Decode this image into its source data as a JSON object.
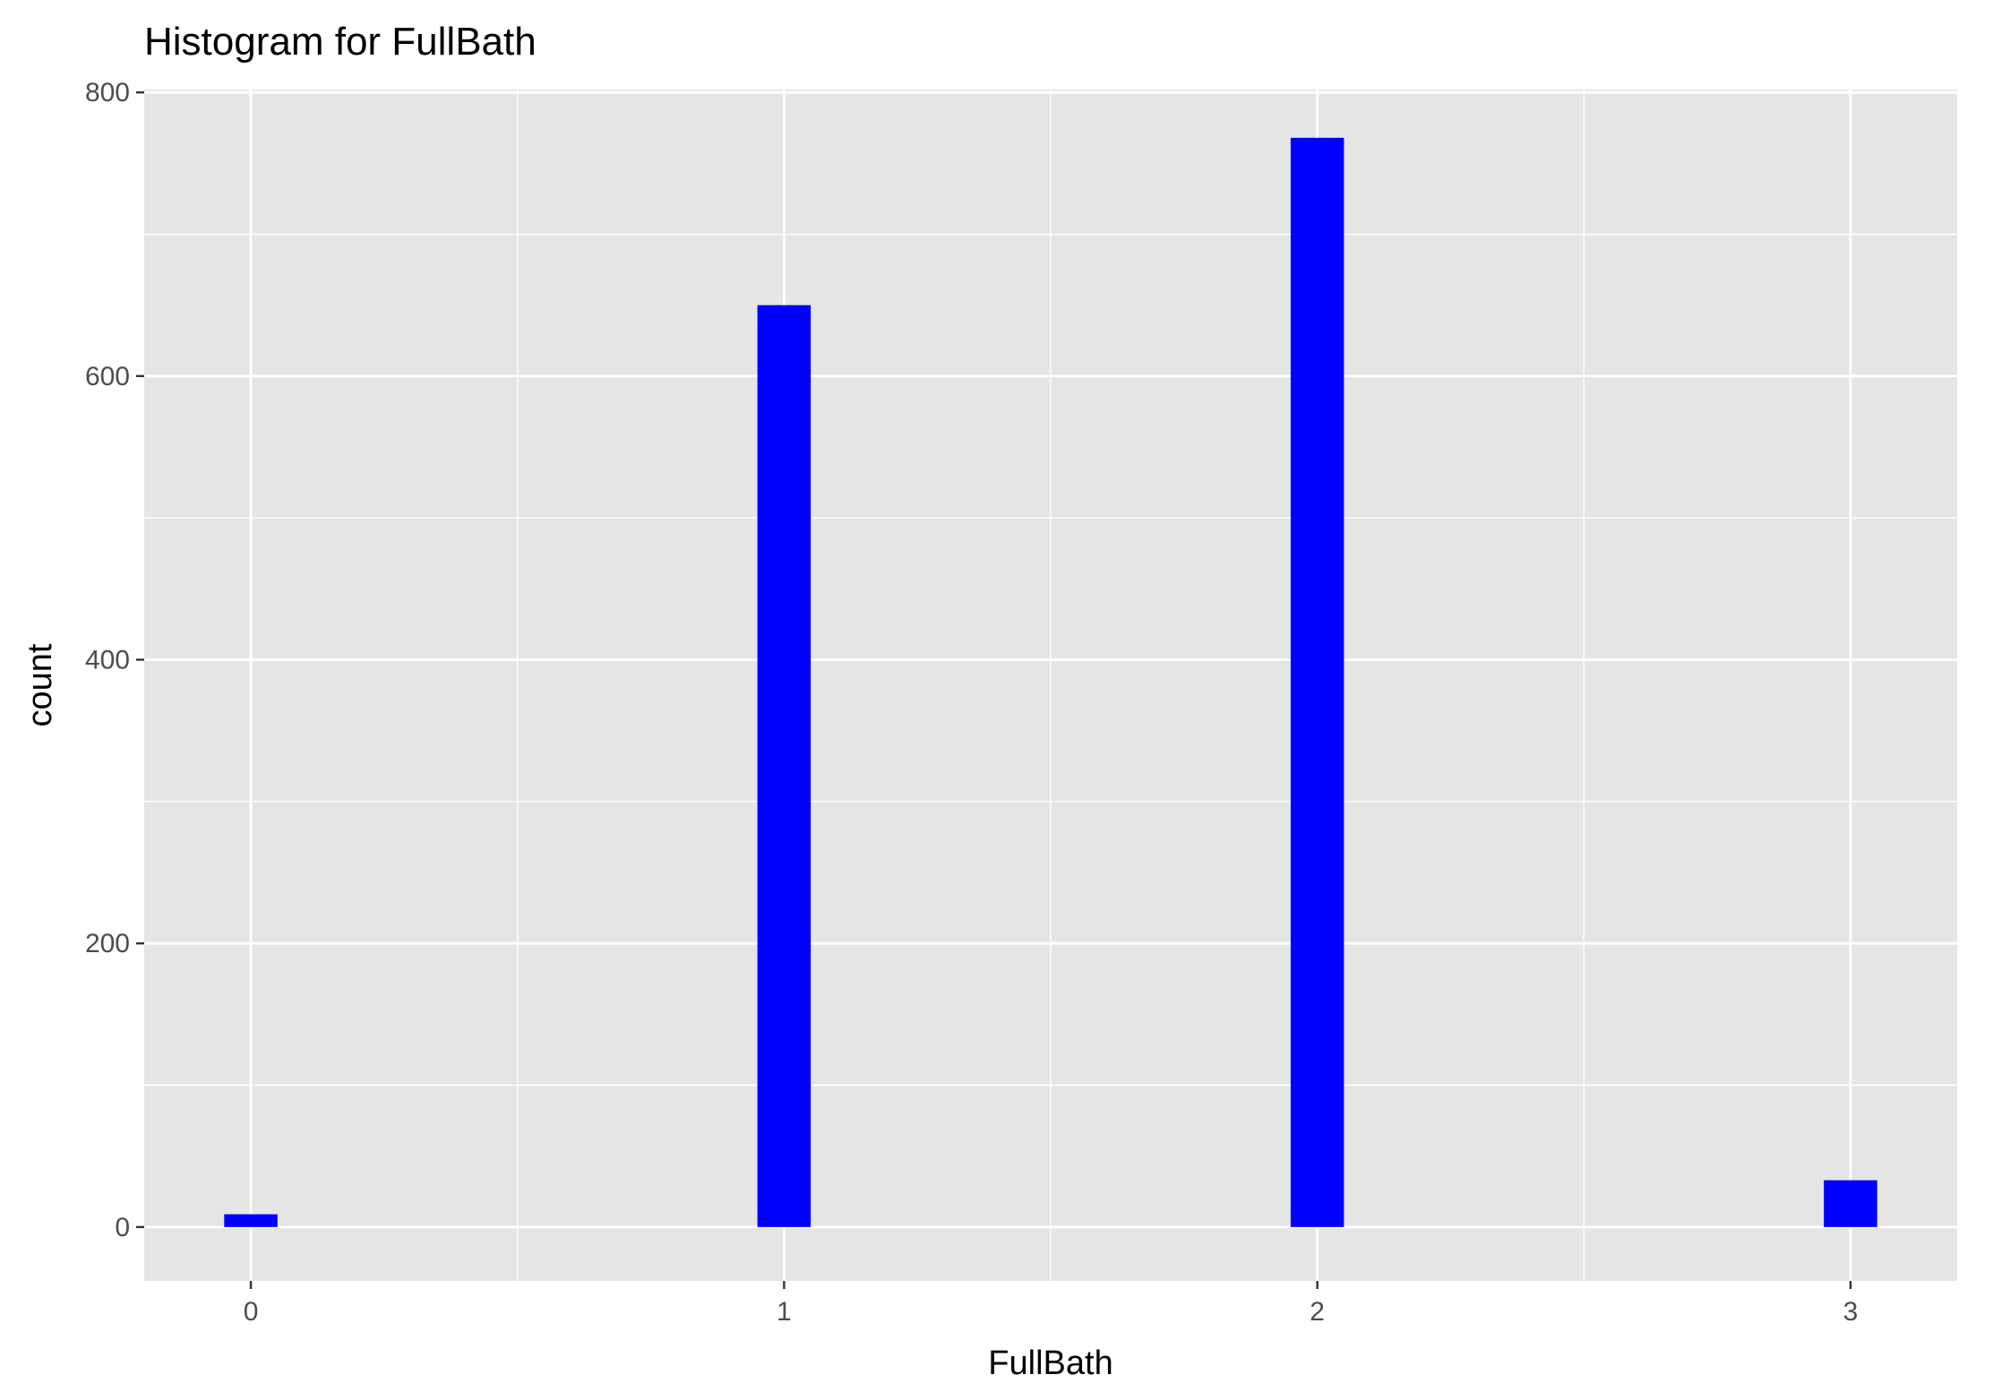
{
  "chart_data": {
    "type": "bar",
    "title": "Histogram for FullBath",
    "xlabel": "FullBath",
    "ylabel": "count",
    "x": [
      0,
      1,
      2,
      3
    ],
    "values": [
      9,
      650,
      768,
      33
    ],
    "xlim": [
      -0.2,
      3.2
    ],
    "ylim": [
      -38,
      802
    ],
    "x_ticks": [
      0,
      1,
      2,
      3
    ],
    "x_minor": [
      0.5,
      1.5,
      2.5
    ],
    "y_ticks": [
      0,
      200,
      400,
      600,
      800
    ],
    "y_minor": [
      100,
      300,
      500,
      700
    ],
    "bin_width": 0.1,
    "grid": true,
    "colors": {
      "bar": "#0000ff",
      "panel": "#e5e5e5",
      "grid": "#ffffff",
      "tick": "#333333"
    }
  }
}
